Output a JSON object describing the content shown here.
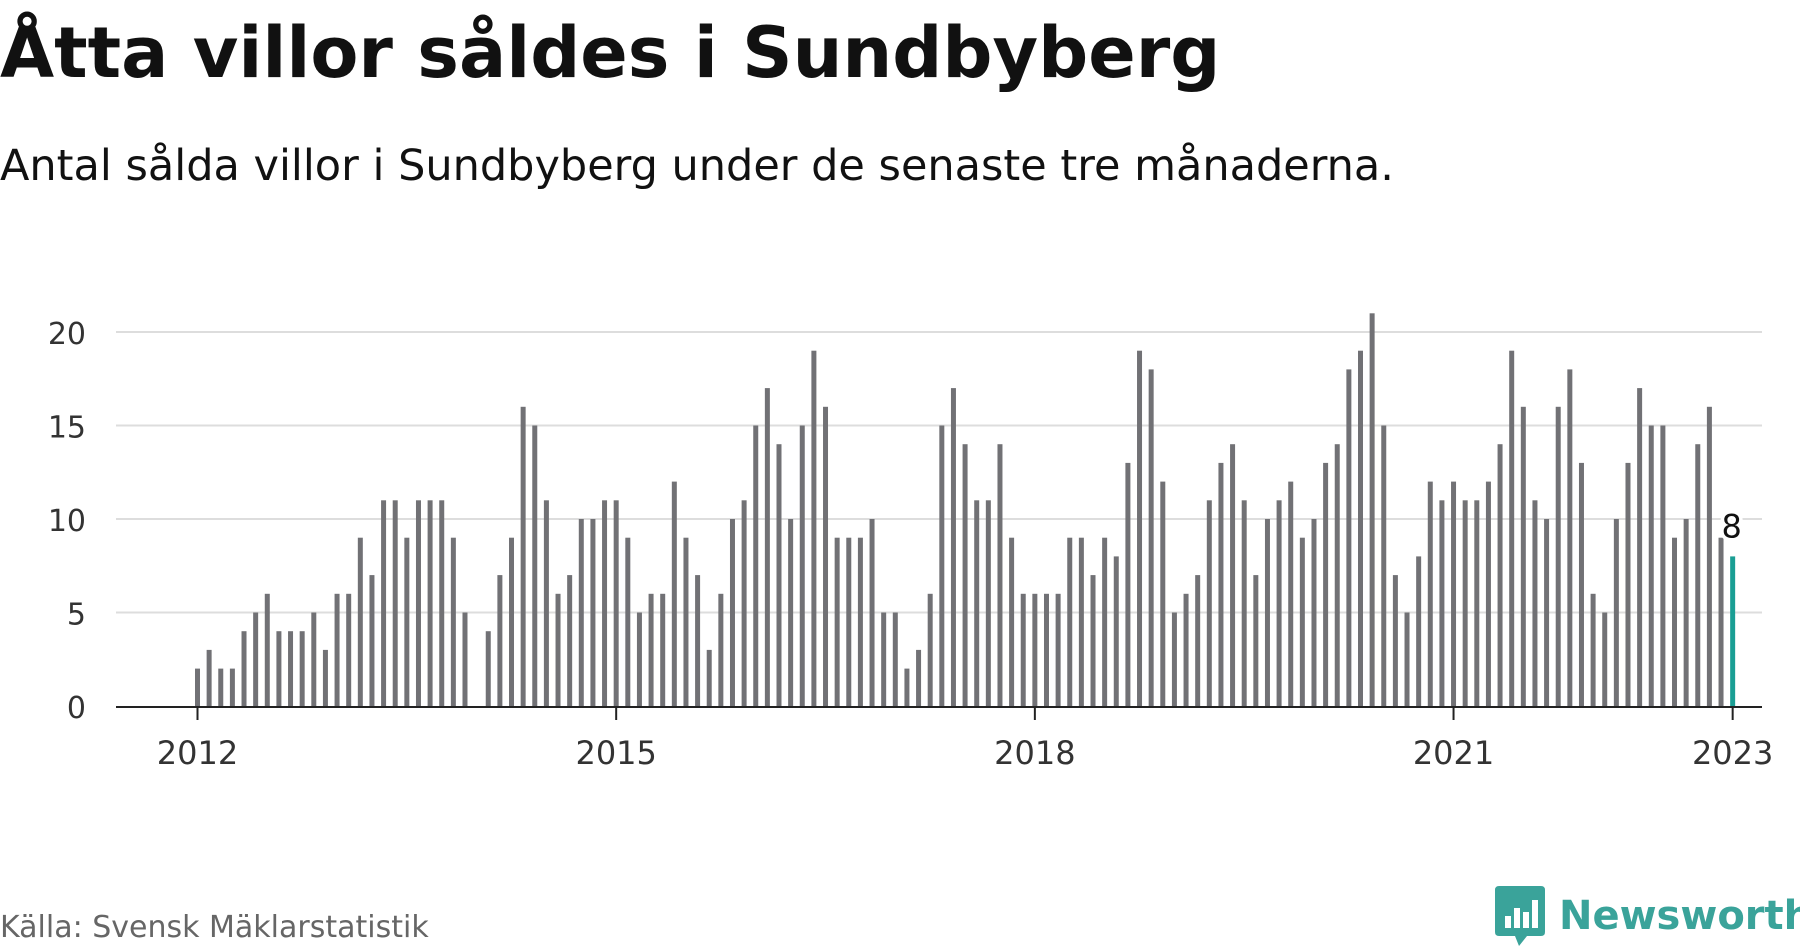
{
  "header": {
    "title": "Åtta villor såldes i Sundbyberg",
    "subtitle": "Antal sålda villor i Sundbyberg under de senaste tre månaderna."
  },
  "footer": {
    "source": "Källa: Svensk Mäklarstatistik",
    "brand": "Newsworthy"
  },
  "colors": {
    "bar": "#717175",
    "highlight": "#1a9e94",
    "brand": "#3aa39a",
    "grid": "#dddddd",
    "axis": "#222222",
    "text": "#111111",
    "tick_text": "#333333"
  },
  "icons": {
    "brand_logo": "newsworthy-logo-icon"
  },
  "chart_data": {
    "type": "bar",
    "x_start": "2012-01",
    "x_interval": "month",
    "values": [
      2,
      3,
      2,
      2,
      4,
      5,
      6,
      4,
      4,
      4,
      5,
      3,
      6,
      6,
      9,
      7,
      11,
      11,
      9,
      11,
      11,
      11,
      9,
      5,
      0,
      4,
      7,
      9,
      16,
      15,
      11,
      6,
      7,
      10,
      10,
      11,
      11,
      9,
      5,
      6,
      6,
      12,
      9,
      7,
      3,
      6,
      10,
      11,
      15,
      17,
      14,
      10,
      15,
      19,
      16,
      9,
      9,
      9,
      10,
      5,
      5,
      2,
      3,
      6,
      15,
      17,
      14,
      11,
      11,
      14,
      9,
      6,
      6,
      6,
      6,
      9,
      9,
      7,
      9,
      8,
      13,
      19,
      18,
      12,
      5,
      6,
      7,
      11,
      13,
      14,
      11,
      7,
      10,
      11,
      12,
      9,
      10,
      13,
      14,
      18,
      19,
      21,
      15,
      7,
      5,
      8,
      12,
      11,
      12,
      11,
      11,
      12,
      14,
      19,
      16,
      11,
      10,
      16,
      18,
      13,
      6,
      5,
      10,
      13,
      17,
      15,
      15,
      9,
      10,
      14,
      16,
      9,
      8
    ],
    "highlight_last": true,
    "highlight_label": "8",
    "yticks": [
      0,
      5,
      10,
      15,
      20
    ],
    "ylim": [
      0,
      21
    ],
    "xticks": [
      {
        "label": "2012",
        "index": 0
      },
      {
        "label": "2015",
        "index": 36
      },
      {
        "label": "2018",
        "index": 72
      },
      {
        "label": "2021",
        "index": 108
      },
      {
        "label": "2023",
        "index": 132
      }
    ],
    "grid": true,
    "legend": false
  }
}
